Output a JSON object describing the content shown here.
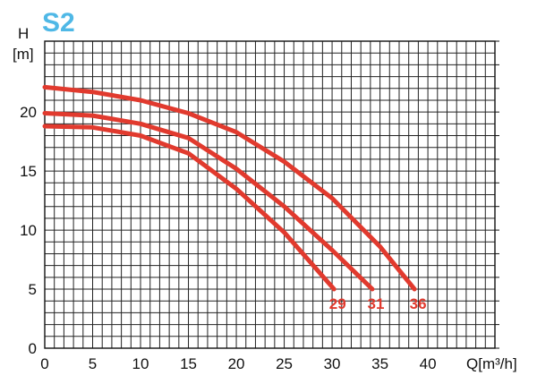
{
  "chart_data": {
    "type": "line",
    "title": "S2",
    "xlabel": "Q[m³/h]",
    "ylabel_top": "H",
    "ylabel_unit": "[m]",
    "xlim": [
      0,
      47
    ],
    "ylim": [
      0,
      26
    ],
    "x_ticks": [
      0,
      5,
      10,
      15,
      20,
      25,
      30,
      35,
      40
    ],
    "x_tick_labels": [
      "0",
      "5",
      "10",
      "15",
      "20",
      "25",
      "30",
      "35",
      "40"
    ],
    "y_ticks": [
      0,
      5,
      10,
      15,
      20
    ],
    "y_tick_labels": [
      "0",
      "5",
      "10",
      "15",
      "20"
    ],
    "grid": true,
    "colors": {
      "title": "#4fb8e6",
      "curve": "#e13a2e",
      "grid": "#222222"
    },
    "series": [
      {
        "name": "29",
        "x": [
          0,
          5,
          10,
          15,
          20,
          25,
          30.2
        ],
        "y": [
          18.8,
          18.7,
          18.0,
          16.5,
          13.5,
          9.8,
          5.0
        ]
      },
      {
        "name": "31",
        "x": [
          0,
          5,
          10,
          15,
          20,
          25,
          30,
          34.2
        ],
        "y": [
          19.9,
          19.7,
          19.0,
          17.8,
          15.2,
          12.0,
          8.3,
          5.0
        ]
      },
      {
        "name": "36",
        "x": [
          0,
          5,
          10,
          15,
          20,
          25,
          30,
          35,
          38.6
        ],
        "y": [
          22.1,
          21.7,
          21.0,
          19.9,
          18.3,
          15.8,
          12.7,
          8.6,
          5.0
        ]
      }
    ]
  }
}
